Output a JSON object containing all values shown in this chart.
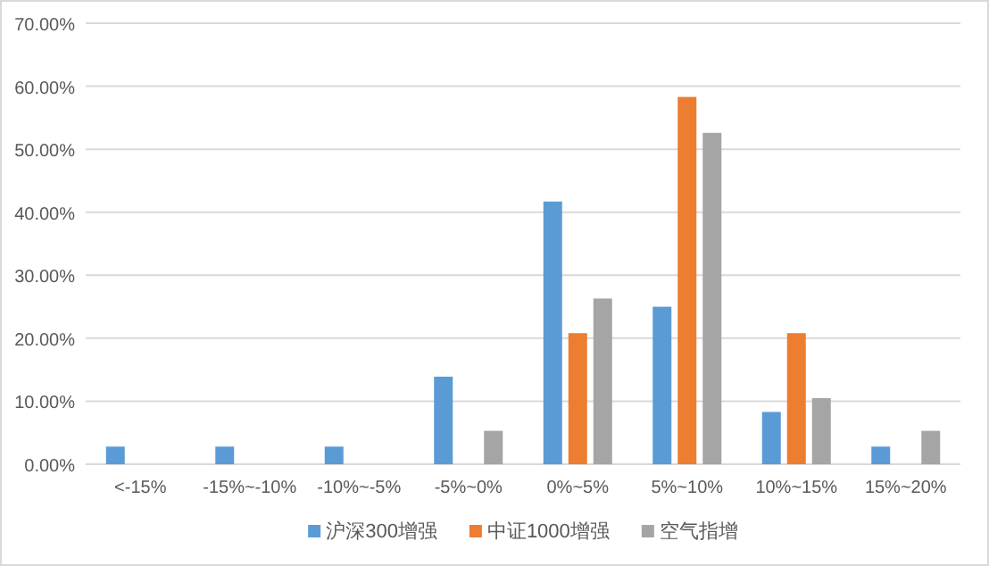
{
  "chart_data": {
    "type": "bar",
    "categories": [
      "<-15%",
      "-15%~-10%",
      "-10%~-5%",
      "-5%~0%",
      "0%~5%",
      "5%~10%",
      "10%~15%",
      "15%~20%"
    ],
    "series": [
      {
        "name": "沪深300增强",
        "color": "#5b9bd5",
        "values": [
          2.8,
          2.8,
          2.8,
          13.9,
          41.7,
          25.0,
          8.3,
          2.8
        ]
      },
      {
        "name": "中证1000增强",
        "color": "#ed7d31",
        "values": [
          null,
          null,
          null,
          null,
          20.8,
          58.3,
          20.8,
          null
        ]
      },
      {
        "name": "空气指增",
        "color": "#a5a5a5",
        "values": [
          null,
          null,
          null,
          5.3,
          26.3,
          52.6,
          10.5,
          5.3
        ]
      }
    ],
    "ylim": [
      0,
      70
    ],
    "yticks": [
      {
        "value": 0,
        "label": "0.00%"
      },
      {
        "value": 10,
        "label": "10.00%"
      },
      {
        "value": 20,
        "label": "20.00%"
      },
      {
        "value": 30,
        "label": "30.00%"
      },
      {
        "value": 40,
        "label": "40.00%"
      },
      {
        "value": 50,
        "label": "50.00%"
      },
      {
        "value": 60,
        "label": "60.00%"
      },
      {
        "value": 70,
        "label": "70.00%"
      }
    ],
    "grid": "y",
    "legend": "bottom"
  }
}
